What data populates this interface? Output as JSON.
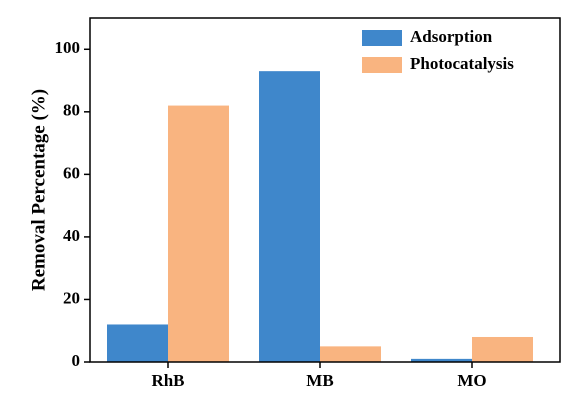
{
  "chart_data": {
    "type": "bar",
    "y_label": "Removal Percentage (%)",
    "categories": [
      "RhB",
      "MB",
      "MO"
    ],
    "series": [
      {
        "name": "Adsorption",
        "color": "#3f87cb",
        "values": [
          12,
          93,
          1
        ]
      },
      {
        "name": "Photocatalysis",
        "color": "#f9b480",
        "values": [
          82,
          5,
          8
        ]
      }
    ],
    "ylim": [
      0,
      110
    ],
    "yticks": [
      0,
      20,
      40,
      60,
      80,
      100
    ],
    "legend": "upper-right"
  }
}
